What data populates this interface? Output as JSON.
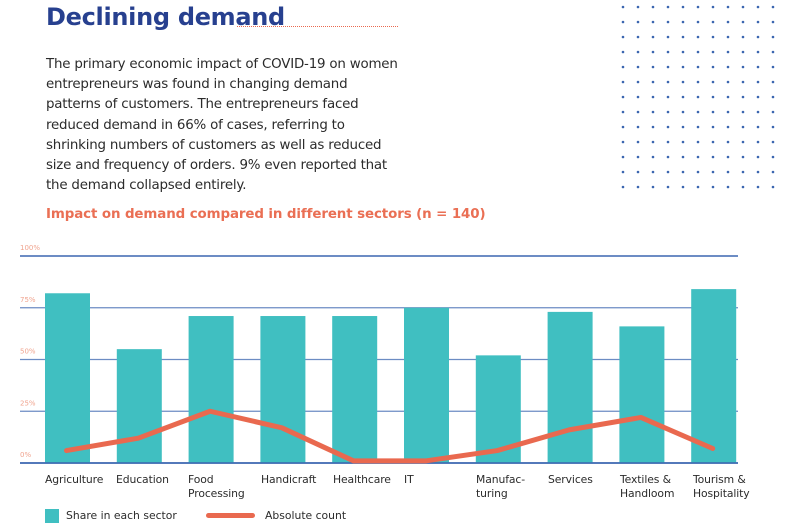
{
  "header": {
    "title": "Declining demand",
    "intro": "The primary economic impact of COVID-19 on women entrepreneurs was found in changing demand patterns of customers. The entrepreneurs faced reduced demand in 66% of cases, referring to shrinking numbers of customers as well as reduced size and frequency of orders. 9% even reported that the demand collapsed entirely."
  },
  "colors": {
    "title": "#27408f",
    "accent": "#e9694f",
    "bar": "#40bfc1",
    "grid": "#3b66b0",
    "dots": "#3b66b0"
  },
  "chart_data": {
    "type": "bar",
    "title": "Impact on demand compared in different sectors (n = 140)",
    "xlabel": "",
    "ylabel": "",
    "ylim": [
      0,
      100
    ],
    "yticks": [
      0,
      25,
      50,
      75,
      100
    ],
    "ytick_labels": [
      "0%",
      "25%",
      "50%",
      "75%",
      "100%"
    ],
    "grid": true,
    "legend_position": "bottom-left",
    "categories": [
      "Agriculture",
      "Education",
      "Food\nProcessing",
      "Handicraft",
      "Healthcare",
      "IT",
      "Manufac-\nturing",
      "Services",
      "Textiles &\nHandloom",
      "Tourism &\nHospitality"
    ],
    "series": [
      {
        "name": "Share in each sector",
        "type": "bar",
        "values": [
          82,
          55,
          71,
          71,
          71,
          75,
          52,
          73,
          66,
          84
        ]
      },
      {
        "name": "Absolute count",
        "type": "line",
        "values": [
          6,
          12,
          25,
          17,
          1,
          1,
          6,
          16,
          22,
          7
        ]
      }
    ]
  }
}
